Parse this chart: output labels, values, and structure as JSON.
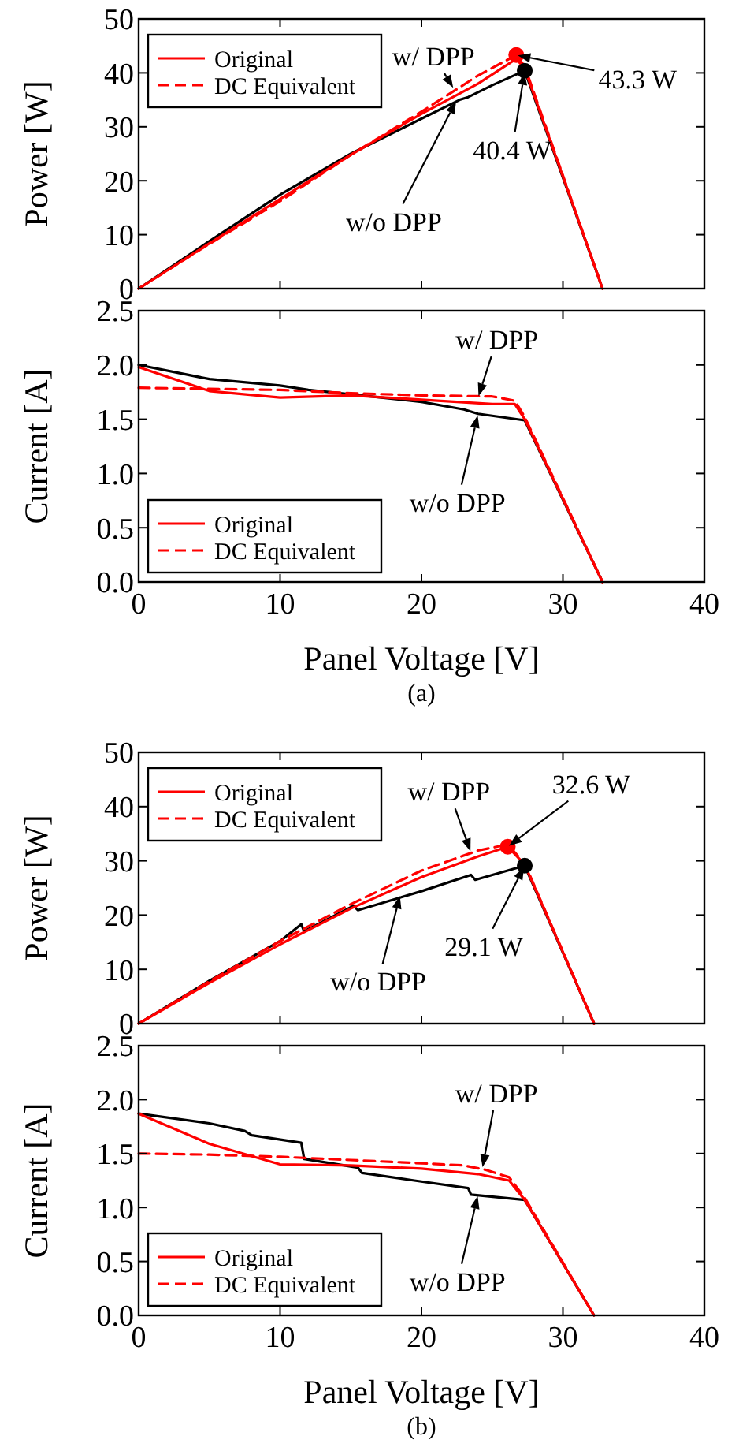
{
  "chart_data": [
    {
      "type": "line",
      "ylabel": "Power [W]",
      "xlim": [
        0,
        40
      ],
      "xticks": [
        0,
        10,
        20,
        30,
        40
      ],
      "ylim": [
        0,
        50
      ],
      "yticks": [
        0,
        10,
        20,
        30,
        40,
        50
      ],
      "tick_labels": "y",
      "legend": "top left",
      "grid": false,
      "series": [
        {
          "color": "#000000",
          "x": [
            0,
            5,
            10,
            15,
            20,
            22.7,
            23.3,
            25,
            27.3,
            32.8
          ],
          "values": [
            0,
            8.8,
            17.4,
            25,
            31.5,
            35,
            35.5,
            37.7,
            40.4,
            0
          ]
        },
        {
          "name": "Original",
          "color": "#ff0000",
          "x": [
            0,
            5,
            10,
            15,
            20,
            24,
            26.7,
            27.3,
            32.8
          ],
          "values": [
            0,
            8.4,
            16.6,
            24.8,
            32.4,
            38,
            42.6,
            40.8,
            0
          ]
        },
        {
          "name": "DC Equivalent",
          "color": "#ff0000",
          "line_style": "dashed",
          "x": [
            0,
            5,
            10,
            15,
            20,
            24,
            26.7,
            27.3,
            32.8
          ],
          "values": [
            0,
            8.3,
            16.2,
            24.8,
            32.8,
            39.5,
            43.3,
            41.2,
            0
          ]
        },
        {
          "type": "scatter",
          "marker": "circle",
          "color": "#ff0000",
          "x": [
            26.7
          ],
          "values": [
            43.3
          ]
        },
        {
          "type": "scatter",
          "marker": "circle",
          "color": "#000000",
          "x": [
            27.3
          ],
          "values": [
            40.4
          ]
        }
      ],
      "annotations": [
        {
          "text": "w/ DPP",
          "x": 22.3,
          "y": 37
        },
        {
          "text": "w/o DPP",
          "x": 22.5,
          "y": 35
        },
        {
          "text": "43.3 W",
          "x": 26.7,
          "y": 43.3
        },
        {
          "text": "40.4 W",
          "x": 27.3,
          "y": 40.4
        }
      ]
    },
    {
      "type": "line",
      "xlabel": "Panel Voltage [V]",
      "ylabel": "Current [A]",
      "xlim": [
        0,
        40
      ],
      "xticks": [
        0,
        10,
        20,
        30,
        40
      ],
      "ylim": [
        0,
        2.5
      ],
      "yticks": [
        {
          "value": 0,
          "label": "0.0"
        },
        0.5,
        {
          "value": 1,
          "label": "1.0"
        },
        1.5,
        {
          "value": 2,
          "label": "2.0"
        },
        2.5
      ],
      "legend": "bottom left",
      "grid": false,
      "series": [
        {
          "color": "#000000",
          "x": [
            0,
            5,
            10,
            12,
            20,
            23,
            24,
            27.3,
            32.8
          ],
          "values": [
            2.0,
            1.87,
            1.81,
            1.77,
            1.66,
            1.59,
            1.55,
            1.49,
            0
          ]
        },
        {
          "name": "Original",
          "color": "#ff0000",
          "x": [
            0,
            5,
            10,
            15,
            20,
            25,
            26.6,
            27.3,
            32.8
          ],
          "values": [
            1.98,
            1.76,
            1.7,
            1.72,
            1.68,
            1.64,
            1.64,
            1.5,
            0
          ]
        },
        {
          "name": "DC Equivalent",
          "color": "#ff0000",
          "line_style": "dashed",
          "x": [
            0,
            5,
            10,
            15,
            20,
            25,
            26.6,
            27.3,
            32.8
          ],
          "values": [
            1.79,
            1.78,
            1.77,
            1.74,
            1.72,
            1.71,
            1.67,
            1.52,
            0
          ]
        }
      ],
      "annotations": [
        {
          "text": "w/ DPP",
          "x": 24,
          "y": 1.7
        },
        {
          "text": "w/o DPP",
          "x": 24,
          "y": 1.55
        },
        "(a)"
      ]
    },
    {
      "type": "line",
      "ylabel": "Power [W]",
      "xlim": [
        0,
        40
      ],
      "xticks": [
        0,
        10,
        20,
        30,
        40
      ],
      "ylim": [
        0,
        50
      ],
      "yticks": [
        0,
        10,
        20,
        30,
        40,
        50
      ],
      "tick_labels": "y",
      "legend": "top left",
      "grid": false,
      "series": [
        {
          "color": "#000000",
          "x": [
            0,
            5,
            10,
            11.5,
            11.7,
            15.2,
            15.5,
            20,
            23.5,
            23.8,
            27.3,
            32.2
          ],
          "values": [
            0,
            7.9,
            15.2,
            18.3,
            17,
            21.7,
            20.9,
            24.4,
            27.4,
            26.5,
            29.1,
            0
          ]
        },
        {
          "name": "Original",
          "color": "#ff0000",
          "x": [
            0,
            5,
            10,
            15,
            20,
            24,
            26.1,
            27.3,
            32.2
          ],
          "values": [
            0,
            7.5,
            14.6,
            21.2,
            27,
            30.8,
            32.6,
            29.3,
            0
          ]
        },
        {
          "name": "DC Equivalent",
          "color": "#ff0000",
          "line_style": "dashed",
          "x": [
            0,
            5,
            10,
            15,
            20,
            24,
            26.1,
            27.3,
            32.2
          ],
          "values": [
            0,
            7.8,
            15.2,
            22,
            28.2,
            31.9,
            33,
            29.5,
            0
          ]
        },
        {
          "type": "scatter",
          "marker": "circle",
          "color": "#ff0000",
          "x": [
            26.1
          ],
          "values": [
            32.6
          ]
        },
        {
          "type": "scatter",
          "marker": "circle",
          "color": "#000000",
          "x": [
            27.3
          ],
          "values": [
            29.1
          ]
        }
      ],
      "annotations": [
        {
          "text": "w/ DPP",
          "x": 23.5,
          "y": 31.5
        },
        {
          "text": "32.6 W",
          "x": 26.1,
          "y": 32.6
        },
        {
          "text": "29.1 W",
          "x": 27.3,
          "y": 29.1
        },
        {
          "text": "w/o DPP",
          "x": 18.5,
          "y": 23.8
        }
      ]
    },
    {
      "type": "line",
      "xlabel": "Panel Voltage [V]",
      "ylabel": "Current [A]",
      "xlim": [
        0,
        40
      ],
      "xticks": [
        0,
        10,
        20,
        30,
        40
      ],
      "ylim": [
        0,
        2.5
      ],
      "yticks": [
        {
          "value": 0,
          "label": "0.0"
        },
        0.5,
        {
          "value": 1,
          "label": "1.0"
        },
        1.5,
        {
          "value": 2,
          "label": "2.0"
        },
        2.5
      ],
      "legend": "bottom left",
      "grid": false,
      "series": [
        {
          "color": "#000000",
          "x": [
            0,
            5,
            7.5,
            8,
            11.5,
            11.7,
            15.5,
            15.8,
            19.5,
            23.3,
            23.5,
            27.3,
            32.2
          ],
          "values": [
            1.87,
            1.78,
            1.71,
            1.67,
            1.6,
            1.45,
            1.37,
            1.32,
            1.25,
            1.18,
            1.12,
            1.07,
            0
          ]
        },
        {
          "name": "Original",
          "color": "#ff0000",
          "x": [
            0,
            5,
            10,
            15,
            20,
            24,
            26.2,
            27.3,
            32.2
          ],
          "values": [
            1.87,
            1.59,
            1.4,
            1.39,
            1.36,
            1.31,
            1.25,
            1.07,
            0
          ]
        },
        {
          "name": "DC Equivalent",
          "color": "#ff0000",
          "line_style": "dashed",
          "x": [
            0,
            5,
            10,
            15,
            20,
            23,
            24.5,
            26.2,
            27.3,
            32.2
          ],
          "values": [
            1.5,
            1.49,
            1.47,
            1.44,
            1.41,
            1.39,
            1.35,
            1.28,
            1.09,
            0
          ]
        }
      ],
      "annotations": [
        {
          "text": "w/ DPP",
          "x": 24.3,
          "y": 1.36
        },
        {
          "text": "w/o DPP",
          "x": 24,
          "y": 1.12
        },
        "(b)"
      ]
    }
  ]
}
